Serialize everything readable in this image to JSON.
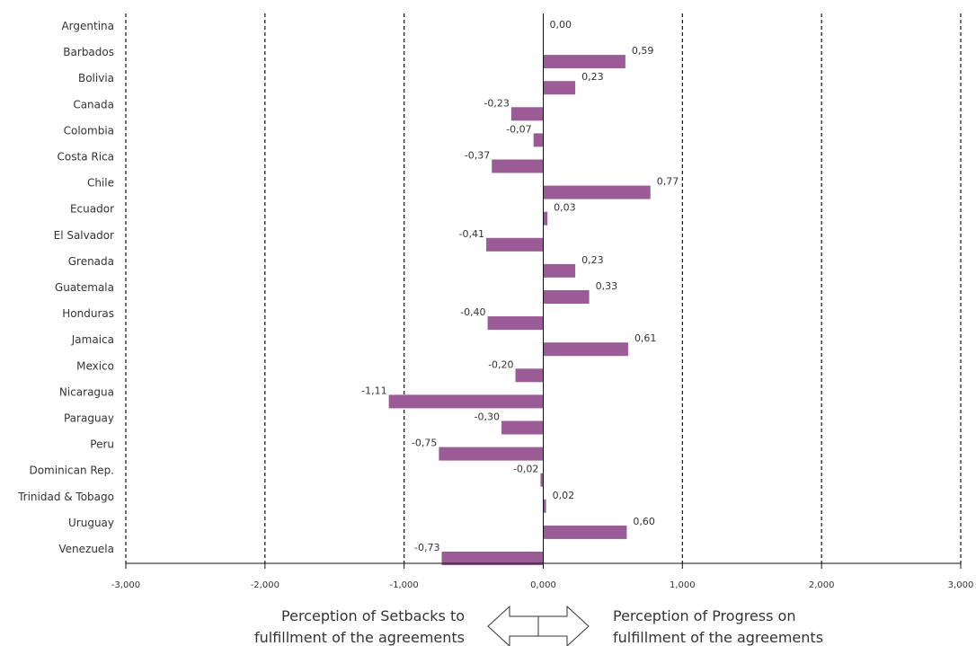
{
  "chart_data": {
    "type": "bar",
    "orientation": "horizontal",
    "categories": [
      "Argentina",
      "Barbados",
      "Bolivia",
      "Canada",
      "Colombia",
      "Costa Rica",
      "Chile",
      "Ecuador",
      "El Salvador",
      "Grenada",
      "Guatemala",
      "Honduras",
      "Jamaica",
      "Mexico",
      "Nicaragua",
      "Paraguay",
      "Peru",
      "Dominican Rep.",
      "Trinidad & Tobago",
      "Uruguay",
      "Venezuela"
    ],
    "values": [
      0.0,
      0.59,
      0.23,
      -0.23,
      -0.07,
      -0.37,
      0.77,
      0.03,
      -0.41,
      0.23,
      0.33,
      -0.4,
      0.61,
      -0.2,
      -1.11,
      -0.3,
      -0.75,
      -0.02,
      0.02,
      0.6,
      -0.73
    ],
    "value_labels": [
      "0,00",
      "0,59",
      "0,23",
      "-0,23",
      "-0,07",
      "-0,37",
      "0,77",
      "0,03",
      "-0,41",
      "0,23",
      "0,33",
      "-0,40",
      "0,61",
      "-0,20",
      "-1,11",
      "-0,30",
      "-0,75",
      "-0,02",
      "0,02",
      "0,60",
      "-0,73"
    ],
    "xlim": [
      -3,
      3
    ],
    "x_ticks": [
      -3,
      -2,
      -1,
      0,
      1,
      2,
      3
    ],
    "x_tick_labels": [
      "-3,000",
      "-2,000",
      "-1,000",
      "0,000",
      "1,000",
      "2,000",
      "3,000"
    ],
    "grid": "vertical dashed lines at major ticks",
    "bar_color": "#9b5b96",
    "xlabel": "",
    "ylabel": ""
  },
  "footer": {
    "left_line1": "Perception of Setbacks to",
    "left_line2": "fulfillment of the agreements",
    "right_line1": "Perception of Progress on",
    "right_line2": "fulfillment of the agreements"
  }
}
